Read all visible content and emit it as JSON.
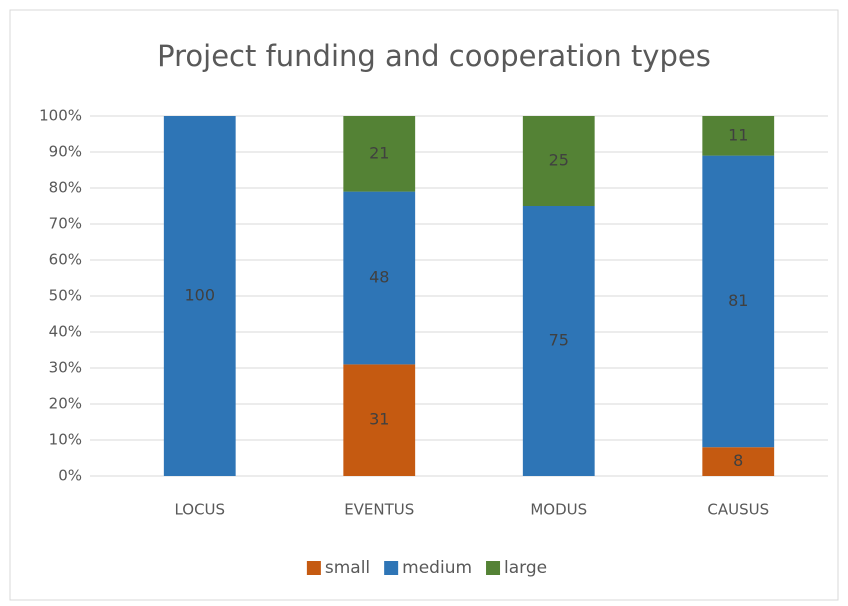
{
  "chart_data": {
    "type": "stacked_bar_percent",
    "title": "Project funding and cooperation types",
    "categories": [
      "LOCUS",
      "EVENTUS",
      "MODUS",
      "CAUSUS"
    ],
    "series": [
      {
        "name": "small",
        "color": "#c55a11",
        "values": [
          null,
          31,
          null,
          8
        ]
      },
      {
        "name": "medium",
        "color": "#2e75b6",
        "values": [
          100,
          48,
          75,
          81
        ]
      },
      {
        "name": "large",
        "color": "#548235",
        "values": [
          null,
          21,
          25,
          11
        ]
      }
    ],
    "ylim": [
      0,
      100
    ],
    "yticks": [
      {
        "value": 0,
        "label": "0%"
      },
      {
        "value": 10,
        "label": "10%"
      },
      {
        "value": 20,
        "label": "20%"
      },
      {
        "value": 30,
        "label": "30%"
      },
      {
        "value": 40,
        "label": "40%"
      },
      {
        "value": 50,
        "label": "50%"
      },
      {
        "value": 60,
        "label": "60%"
      },
      {
        "value": 70,
        "label": "70%"
      },
      {
        "value": 80,
        "label": "80%"
      },
      {
        "value": 90,
        "label": "90%"
      },
      {
        "value": 100,
        "label": "100%"
      }
    ],
    "grid": true,
    "legend": "bottom"
  }
}
